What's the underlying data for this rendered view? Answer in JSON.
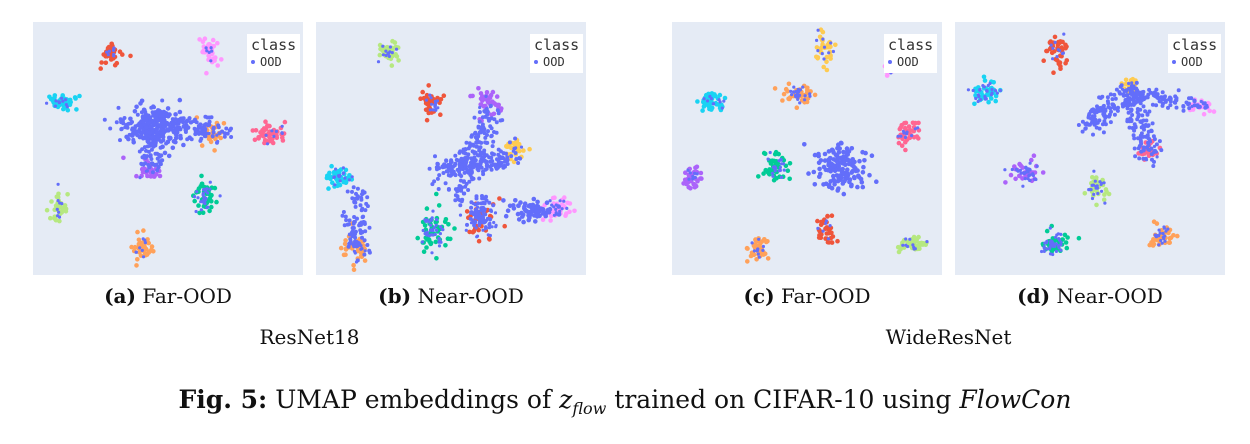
{
  "panels": [
    {
      "id": "a",
      "legend": {
        "title": "class",
        "entry": "OOD"
      }
    },
    {
      "id": "b",
      "legend": {
        "title": "class",
        "entry": "OOD"
      }
    },
    {
      "id": "c",
      "legend": {
        "title": "class",
        "entry": "OOD"
      }
    },
    {
      "id": "d",
      "legend": {
        "title": "class",
        "entry": "OOD"
      }
    }
  ],
  "subcaptions": [
    {
      "label": "(a)",
      "text": "Far-OOD"
    },
    {
      "label": "(b)",
      "text": "Near-OOD"
    },
    {
      "label": "(c)",
      "text": "Far-OOD"
    },
    {
      "label": "(d)",
      "text": "Near-OOD"
    }
  ],
  "groups": [
    "ResNet18",
    "WideResNet"
  ],
  "caption": {
    "label": "Fig. 5:",
    "text_before": "UMAP embeddings of",
    "math_var": "z",
    "math_sub": "flow",
    "text_after": "trained on CIFAR-10 using",
    "method": "FlowCon"
  },
  "colors": {
    "background": "#e5ebf5",
    "ood": "#636efa",
    "classes": [
      "#ef553b",
      "#00cc96",
      "#ab63fa",
      "#ffa15a",
      "#19d3f3",
      "#ff6692",
      "#b6e880",
      "#ff97ff",
      "#fecb52",
      "#636efa"
    ]
  }
}
